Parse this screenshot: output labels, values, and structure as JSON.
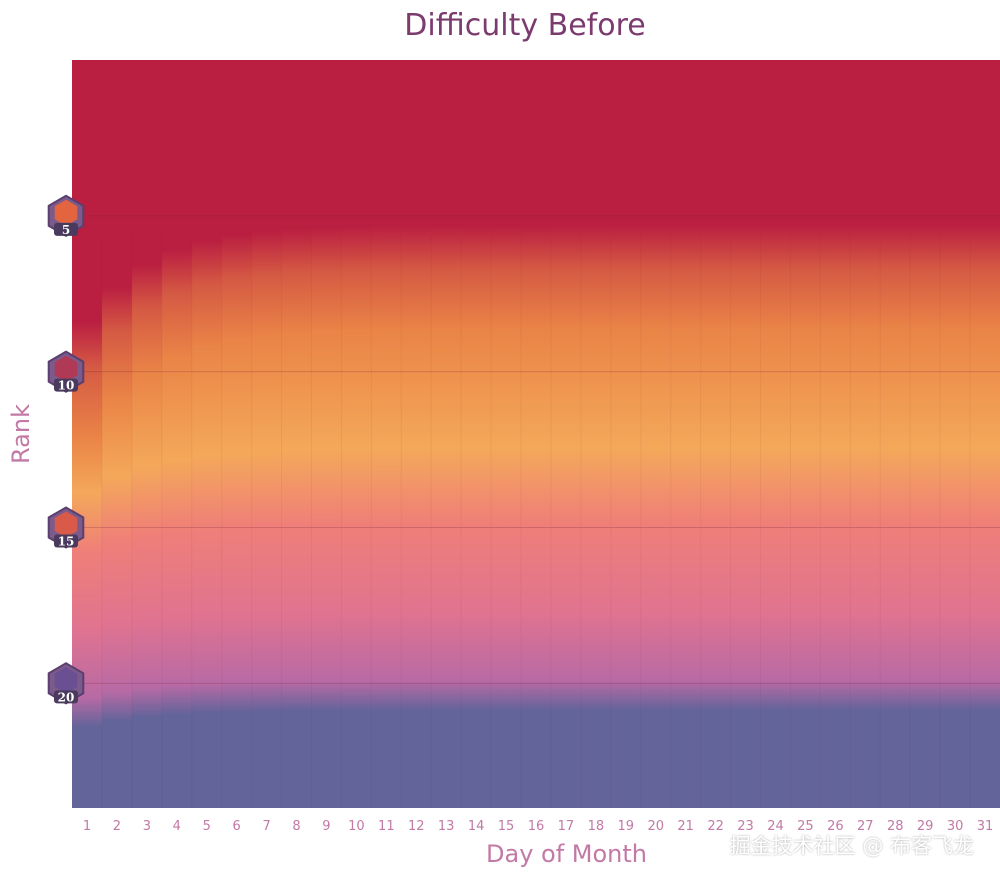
{
  "chart_data": {
    "type": "heatmap",
    "title": "Difficulty Before",
    "xlabel": "Day of Month",
    "ylabel": "Rank",
    "x": [
      1,
      2,
      3,
      4,
      5,
      6,
      7,
      8,
      9,
      10,
      11,
      12,
      13,
      14,
      15,
      16,
      17,
      18,
      19,
      20,
      21,
      22,
      23,
      24,
      25,
      26,
      27,
      28,
      29,
      30,
      31
    ],
    "xlim": [
      1,
      31
    ],
    "ylim": [
      0,
      24
    ],
    "yticks": [
      {
        "rank": 5,
        "label": "5",
        "badge_color": "#e2653f"
      },
      {
        "rank": 10,
        "label": "10",
        "badge_color": "#b03a55"
      },
      {
        "rank": 15,
        "label": "15",
        "badge_color": "#d95a48"
      },
      {
        "rank": 20,
        "label": "20",
        "badge_color": "#6a4f93"
      }
    ],
    "colorscale": [
      "#ba1e41",
      "#d55a43",
      "#ea8447",
      "#f4a85a",
      "#ef7f78",
      "#e07390",
      "#b86aa5",
      "#62649a"
    ],
    "grid": true
  },
  "watermark": "掘金技术社区 @ 布客飞龙"
}
